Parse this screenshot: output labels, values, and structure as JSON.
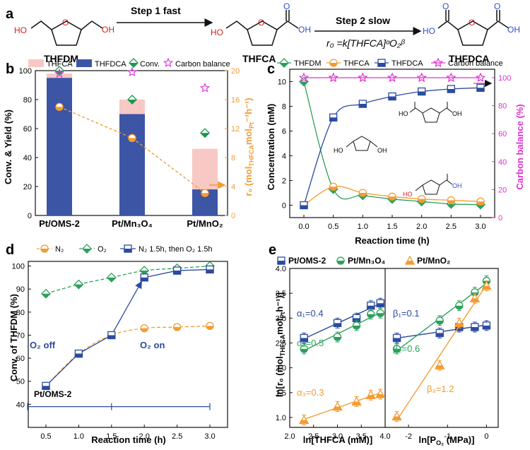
{
  "panel_labels": {
    "a": "a",
    "b": "b",
    "c": "c",
    "d": "d",
    "e": "e"
  },
  "scheme": {
    "step1": "Step 1  fast",
    "step2": "Step 2  slow",
    "rate_law": "r₀ =k[THFCA]ᵅO₂ᵝ",
    "compounds": [
      "THFDM",
      "THFCA",
      "THFDCA"
    ],
    "atoms": {
      "ho": "HO",
      "oh": "OH",
      "o": "O"
    }
  },
  "chart_data": [
    {
      "panel": "b",
      "type": "bar",
      "categories": [
        "Pt/OMS-2",
        "Pt/Mn₃O₄",
        "Pt/MnO₂"
      ],
      "series": [
        {
          "name": "THFDCA",
          "values": [
            95,
            70,
            18
          ],
          "color": "#3c55a5"
        },
        {
          "name": "THFCA",
          "values": [
            3,
            10,
            28
          ],
          "color": "#f8c8c4"
        },
        {
          "name": "Conv.",
          "values": [
            100,
            80,
            57
          ],
          "marker": "diamond",
          "color": "#1a9850"
        },
        {
          "name": "Carbon balance",
          "values": [
            98,
            99,
            88
          ],
          "marker": "star",
          "color": "#e040e0"
        },
        {
          "name": "r0",
          "values": [
            15,
            10.7,
            3.1
          ],
          "axis": "right",
          "marker": "circle",
          "color": "#f39c33"
        }
      ],
      "ylabel": "Conv. & Yield (%)",
      "ylabel_right": "r₀ (mol",
      "ylabel_right_sub": "THFCA",
      "ylabel_right_mid": "mol",
      "ylabel_right_sub2": "Pt",
      "ylabel_right_end": "⁻¹h⁻¹)",
      "ylim": [
        0,
        100
      ],
      "ylim_right": [
        0,
        20
      ],
      "yticks": [
        "0",
        "20",
        "40",
        "60",
        "80",
        "100"
      ],
      "yticks_right": [
        "0",
        "4",
        "8",
        "12",
        "16",
        "20"
      ]
    },
    {
      "panel": "c",
      "type": "line",
      "x": [
        0,
        0.5,
        1.0,
        1.5,
        2.0,
        2.5,
        3.0
      ],
      "xticks": [
        "0.0",
        "0.5",
        "1.0",
        "1.5",
        "2.0",
        "2.5",
        "3.0"
      ],
      "series": [
        {
          "name": "THFDM",
          "values": [
            10,
            1.3,
            0.8,
            0.5,
            0.3,
            0.1,
            0.05
          ],
          "color": "#2ca05a",
          "marker": "diamond"
        },
        {
          "name": "THFCA",
          "values": [
            0,
            1.5,
            1.0,
            0.7,
            0.5,
            0.4,
            0.3
          ],
          "color": "#f39c33",
          "marker": "circle"
        },
        {
          "name": "THFDCA",
          "values": [
            0,
            7.1,
            8.2,
            8.8,
            9.2,
            9.4,
            9.5
          ],
          "color": "#2b4ba0",
          "marker": "square"
        },
        {
          "name": "Carbon balance",
          "values": [
            100,
            100,
            100,
            100,
            100,
            100,
            100
          ],
          "color": "#e030d0",
          "marker": "star",
          "axis": "right"
        }
      ],
      "xlabel": "Reaction time (h)",
      "ylabel": "Concentration (mM)",
      "ylabel_right": "Carbon balance (%)",
      "ylim": [
        -1,
        11
      ],
      "ylim_right": [
        0,
        100
      ],
      "yticks": [
        "0",
        "2",
        "4",
        "6",
        "8",
        "10"
      ],
      "yticks_right": [
        "0",
        "20",
        "40",
        "60",
        "80",
        "100"
      ]
    },
    {
      "panel": "d",
      "type": "line",
      "x": [
        0.5,
        1.0,
        1.5,
        2.0,
        2.5,
        3.0
      ],
      "xticks": [
        "0.5",
        "1.0",
        "1.5",
        "2.0",
        "2.5",
        "3.0"
      ],
      "series": [
        {
          "name": "N₂",
          "values": [
            48,
            62,
            70,
            73,
            73.5,
            74
          ],
          "color": "#f39c33",
          "marker": "circle"
        },
        {
          "name": "O₂",
          "values": [
            88,
            92,
            95,
            98,
            99,
            100
          ],
          "color": "#2ca05a",
          "marker": "diamond"
        },
        {
          "name": "N₂ 1.5h, then O₂ 1.5h",
          "values": [
            48,
            62,
            70,
            95,
            98,
            98.5
          ],
          "color": "#2b4ba0",
          "marker": "square"
        }
      ],
      "xlabel": "Reaction time (h)",
      "ylabel": "Conv. of THFDM (%)",
      "ylim": [
        30,
        102
      ],
      "yticks": [
        "40",
        "50",
        "60",
        "70",
        "80",
        "90",
        "100"
      ],
      "annotations": [
        "O₂ off",
        "O₂ on",
        "Pt/OMS-2"
      ]
    },
    {
      "panel": "e",
      "type": "scatter",
      "ylabel": "ln[r₀ (mol",
      "ylabel_sub": "THFCA",
      "ylabel_mid": "mol",
      "ylabel_sub2": "Pt",
      "ylabel_end": "h⁻¹)]",
      "ylim": [
        0.8,
        4.0
      ],
      "yticks": [
        "1.0",
        "1.5",
        "2.0",
        "2.5",
        "3.0",
        "3.5",
        "4.0"
      ],
      "left": {
        "xlabel": "ln[THFCA (mM)]",
        "xlim": [
          2.0,
          4.0
        ],
        "xticks": [
          "2.0",
          "2.5",
          "3.0",
          "3.5",
          "4.0"
        ],
        "series": [
          {
            "name": "Pt/OMS-2",
            "x": [
              2.3,
              3.0,
              3.4,
              3.7,
              3.9
            ],
            "y": [
              2.6,
              2.9,
              3.0,
              3.25,
              3.3
            ],
            "color": "#2b4ba0",
            "marker": "square"
          },
          {
            "name": "Pt/Mn₃O₄",
            "x": [
              2.3,
              3.0,
              3.4,
              3.7,
              3.9
            ],
            "y": [
              2.38,
              2.62,
              2.85,
              3.08,
              3.1
            ],
            "color": "#2ca05a",
            "marker": "circle"
          },
          {
            "name": "Pt/MnO₂",
            "x": [
              2.3,
              3.0,
              3.4,
              3.7,
              3.9
            ],
            "y": [
              0.95,
              1.22,
              1.32,
              1.45,
              1.47
            ],
            "color": "#f39c33",
            "marker": "triangle"
          }
        ],
        "slopes": [
          "α₁=0.4",
          "α₂=0.5",
          "α₃=0.3"
        ]
      },
      "right": {
        "xlabel": "ln[P",
        "xlabel_sub": "O₂",
        "xlabel_end": " (MPa)]",
        "xlim": [
          -2.6,
          0.3
        ],
        "xticks": [
          "-2",
          "-1",
          "0"
        ],
        "series": [
          {
            "name": "Pt/OMS-2",
            "x": [
              -2.3,
              -1.2,
              -0.7,
              -0.3,
              0
            ],
            "y": [
              2.6,
              2.7,
              2.82,
              2.82,
              2.85
            ],
            "color": "#2b4ba0",
            "marker": "square"
          },
          {
            "name": "Pt/Mn₃O₄",
            "x": [
              -2.3,
              -1.2,
              -0.7,
              -0.3,
              0
            ],
            "y": [
              2.38,
              2.95,
              3.25,
              3.52,
              3.75
            ],
            "color": "#2ca05a",
            "marker": "circle"
          },
          {
            "name": "Pt/MnO₂",
            "x": [
              -2.3,
              -1.2,
              -0.7,
              -0.3,
              0
            ],
            "y": [
              1.02,
              2.05,
              2.9,
              3.4,
              3.65
            ],
            "color": "#f39c33",
            "marker": "triangle"
          }
        ],
        "slopes": [
          "β₁=0.1",
          "β₂=0.6",
          "β₃=1.2"
        ]
      }
    }
  ]
}
